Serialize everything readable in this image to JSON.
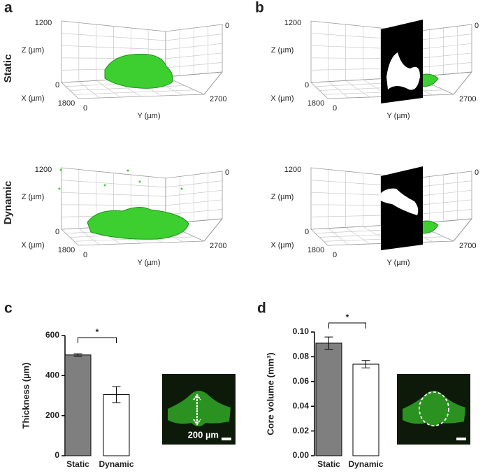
{
  "figure": {
    "panel_labels": [
      "a",
      "b",
      "c",
      "d"
    ],
    "row_labels": [
      "Static",
      "Dynamic"
    ],
    "render_axes": {
      "z_label": "Z (µm)",
      "x_label": "X (µm)",
      "y_label": "Y (µm)",
      "z_ticks": [
        0,
        1200
      ],
      "x_ticks": [
        0,
        1800
      ],
      "y_ticks": [
        0,
        2700
      ]
    }
  },
  "chart_data": [
    {
      "type": "bar",
      "y_label": "Thickness (µm)",
      "categories": [
        "Static",
        "Dynamic"
      ],
      "values": [
        503,
        305
      ],
      "errors": [
        6,
        40
      ],
      "colors": [
        "#7f7f7f",
        "#ffffff"
      ],
      "ylim": [
        0,
        600
      ],
      "yticks": [
        0,
        200,
        400,
        600
      ],
      "significance": "*",
      "inset_label": "200 µm"
    },
    {
      "type": "bar",
      "y_label": "Core volume (mm³)",
      "categories": [
        "Static",
        "Dynamic"
      ],
      "values": [
        0.091,
        0.074
      ],
      "errors": [
        0.005,
        0.003
      ],
      "colors": [
        "#7f7f7f",
        "#ffffff"
      ],
      "ylim": [
        0,
        0.1
      ],
      "yticks": [
        {
          "value": 0,
          "label": "0.00"
        },
        {
          "value": 0.02,
          "label": "0.02"
        },
        {
          "value": 0.04,
          "label": "0.04"
        },
        {
          "value": 0.06,
          "label": "0.06"
        },
        {
          "value": 0.08,
          "label": "0.08"
        },
        {
          "value": 0.1,
          "label": "0.10"
        }
      ],
      "significance": "*"
    }
  ]
}
